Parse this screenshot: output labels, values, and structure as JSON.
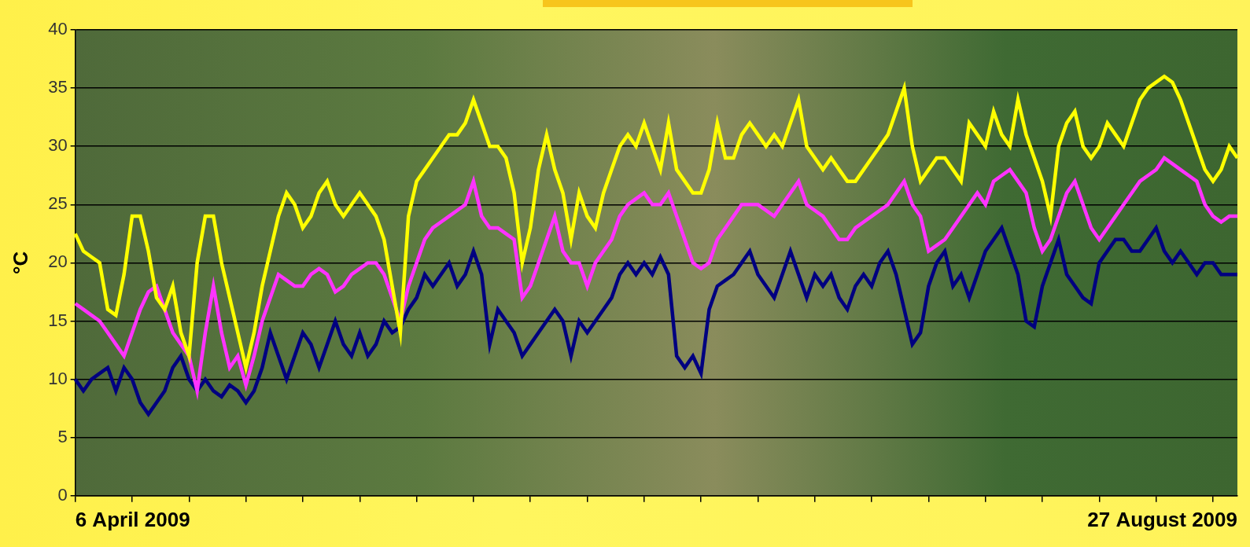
{
  "chart_data": {
    "type": "line",
    "y_label": "°C",
    "categories": [
      "6 April 2009",
      null,
      null,
      null,
      null,
      null,
      null,
      null,
      null,
      null,
      null,
      null,
      null,
      null,
      null,
      null,
      null,
      null,
      null,
      null,
      null,
      null,
      null,
      null,
      null,
      null,
      null,
      null,
      null,
      null,
      null,
      null,
      null,
      null,
      null,
      null,
      null,
      null,
      null,
      null,
      null,
      null,
      null,
      null,
      null,
      null,
      null,
      null,
      null,
      null,
      null,
      null,
      null,
      null,
      null,
      null,
      null,
      null,
      null,
      null,
      null,
      null,
      null,
      null,
      null,
      null,
      null,
      null,
      null,
      null,
      null,
      null,
      null,
      null,
      null,
      null,
      null,
      null,
      null,
      null,
      null,
      null,
      null,
      null,
      null,
      null,
      null,
      null,
      null,
      null,
      null,
      null,
      null,
      null,
      null,
      null,
      null,
      null,
      null,
      null,
      null,
      null,
      null,
      null,
      null,
      null,
      null,
      null,
      null,
      null,
      null,
      null,
      null,
      null,
      null,
      null,
      null,
      null,
      null,
      null,
      null,
      null,
      null,
      null,
      null,
      null,
      null,
      null,
      null,
      null,
      null,
      null,
      null,
      null,
      null,
      null,
      null,
      null,
      null,
      null,
      null,
      null,
      null,
      "27 August 2009"
    ],
    "series": [
      {
        "color": "#ffff00",
        "values": [
          22.5,
          21,
          20.5,
          20,
          16,
          15.5,
          19,
          24,
          24,
          21,
          17,
          16,
          18,
          14,
          12,
          20,
          24,
          24,
          20,
          17,
          14,
          11,
          14,
          18,
          21,
          24,
          26,
          25,
          23,
          24,
          26,
          27,
          25,
          24,
          25,
          26,
          25,
          24,
          22,
          18,
          14,
          24,
          27,
          28,
          29,
          30,
          31,
          31,
          32,
          34,
          32,
          30,
          30,
          29,
          26,
          20,
          23,
          28,
          31,
          28,
          26,
          22,
          26,
          24,
          23,
          26,
          28,
          30,
          31,
          30,
          32,
          30,
          28,
          32,
          28,
          27,
          26,
          26,
          28,
          32,
          29,
          29,
          31,
          32,
          31,
          30,
          31,
          30,
          32,
          34,
          30,
          29,
          28,
          29,
          28,
          27,
          27,
          28,
          29,
          30,
          31,
          33,
          35,
          30,
          27,
          28,
          29,
          29,
          28,
          27,
          32,
          31,
          30,
          33,
          31,
          30,
          34,
          31,
          29,
          27,
          24,
          30,
          32,
          33,
          30,
          29,
          30,
          32,
          31,
          30,
          32,
          34,
          35,
          35.5,
          36,
          35.5,
          34,
          32,
          30,
          28,
          27,
          28,
          30,
          29
        ]
      },
      {
        "color": "#ff33ff",
        "values": [
          16.5,
          16,
          15.5,
          15,
          14,
          13,
          12,
          14,
          16,
          17.5,
          18,
          16,
          14,
          13,
          12,
          9,
          14,
          18,
          14,
          11,
          12,
          9.5,
          12,
          15,
          17,
          19,
          18.5,
          18,
          18,
          19,
          19.5,
          19,
          17.5,
          18,
          19,
          19.5,
          20,
          20,
          19,
          17,
          15,
          18,
          20,
          22,
          23,
          23.5,
          24,
          24.5,
          25,
          27,
          24,
          23,
          23,
          22.5,
          22,
          17,
          18,
          20,
          22,
          24,
          21,
          20,
          20,
          18,
          20,
          21,
          22,
          24,
          25,
          25.5,
          26,
          25,
          25,
          26,
          24,
          22,
          20,
          19.5,
          20,
          22,
          23,
          24,
          25,
          25,
          25,
          24.5,
          24,
          25,
          26,
          27,
          25,
          24.5,
          24,
          23,
          22,
          22,
          23,
          23.5,
          24,
          24.5,
          25,
          26,
          27,
          25,
          24,
          21,
          21.5,
          22,
          23,
          24,
          25,
          26,
          25,
          27,
          27.5,
          28,
          27,
          26,
          23,
          21,
          22,
          24,
          26,
          27,
          25,
          23,
          22,
          23,
          24,
          25,
          26,
          27,
          27.5,
          28,
          29,
          28.5,
          28,
          27.5,
          27,
          25,
          24,
          23.5,
          24,
          24
        ]
      },
      {
        "color": "#000080",
        "values": [
          10,
          9,
          10,
          10.5,
          11,
          9,
          11,
          10,
          8,
          7,
          8,
          9,
          11,
          12,
          10,
          9,
          10,
          9,
          8.5,
          9.5,
          9,
          8,
          9,
          11,
          14,
          12,
          10,
          12,
          14,
          13,
          11,
          13,
          15,
          13,
          12,
          14,
          12,
          13,
          15,
          14,
          14.5,
          16,
          17,
          19,
          18,
          19,
          20,
          18,
          19,
          21,
          19,
          13,
          16,
          15,
          14,
          12,
          13,
          14,
          15,
          16,
          15,
          12,
          15,
          14,
          15,
          16,
          17,
          19,
          20,
          19,
          20,
          19,
          20.5,
          19,
          12,
          11,
          12,
          10.5,
          16,
          18,
          18.5,
          19,
          20,
          21,
          19,
          18,
          17,
          19,
          21,
          19,
          17,
          19,
          18,
          19,
          17,
          16,
          18,
          19,
          18,
          20,
          21,
          19,
          16,
          13,
          14,
          18,
          20,
          21,
          18,
          19,
          17,
          19,
          21,
          22,
          23,
          21,
          19,
          15,
          14.5,
          18,
          20,
          22,
          19,
          18,
          17,
          16.5,
          20,
          21,
          22,
          22,
          21,
          21,
          22,
          23,
          21,
          20,
          21,
          20,
          19,
          20,
          20,
          19,
          19,
          19
        ]
      }
    ],
    "ylim": [
      0,
      40
    ],
    "yticks": [
      0,
      5,
      10,
      15,
      20,
      25,
      30,
      35,
      40
    ],
    "grid": true
  }
}
